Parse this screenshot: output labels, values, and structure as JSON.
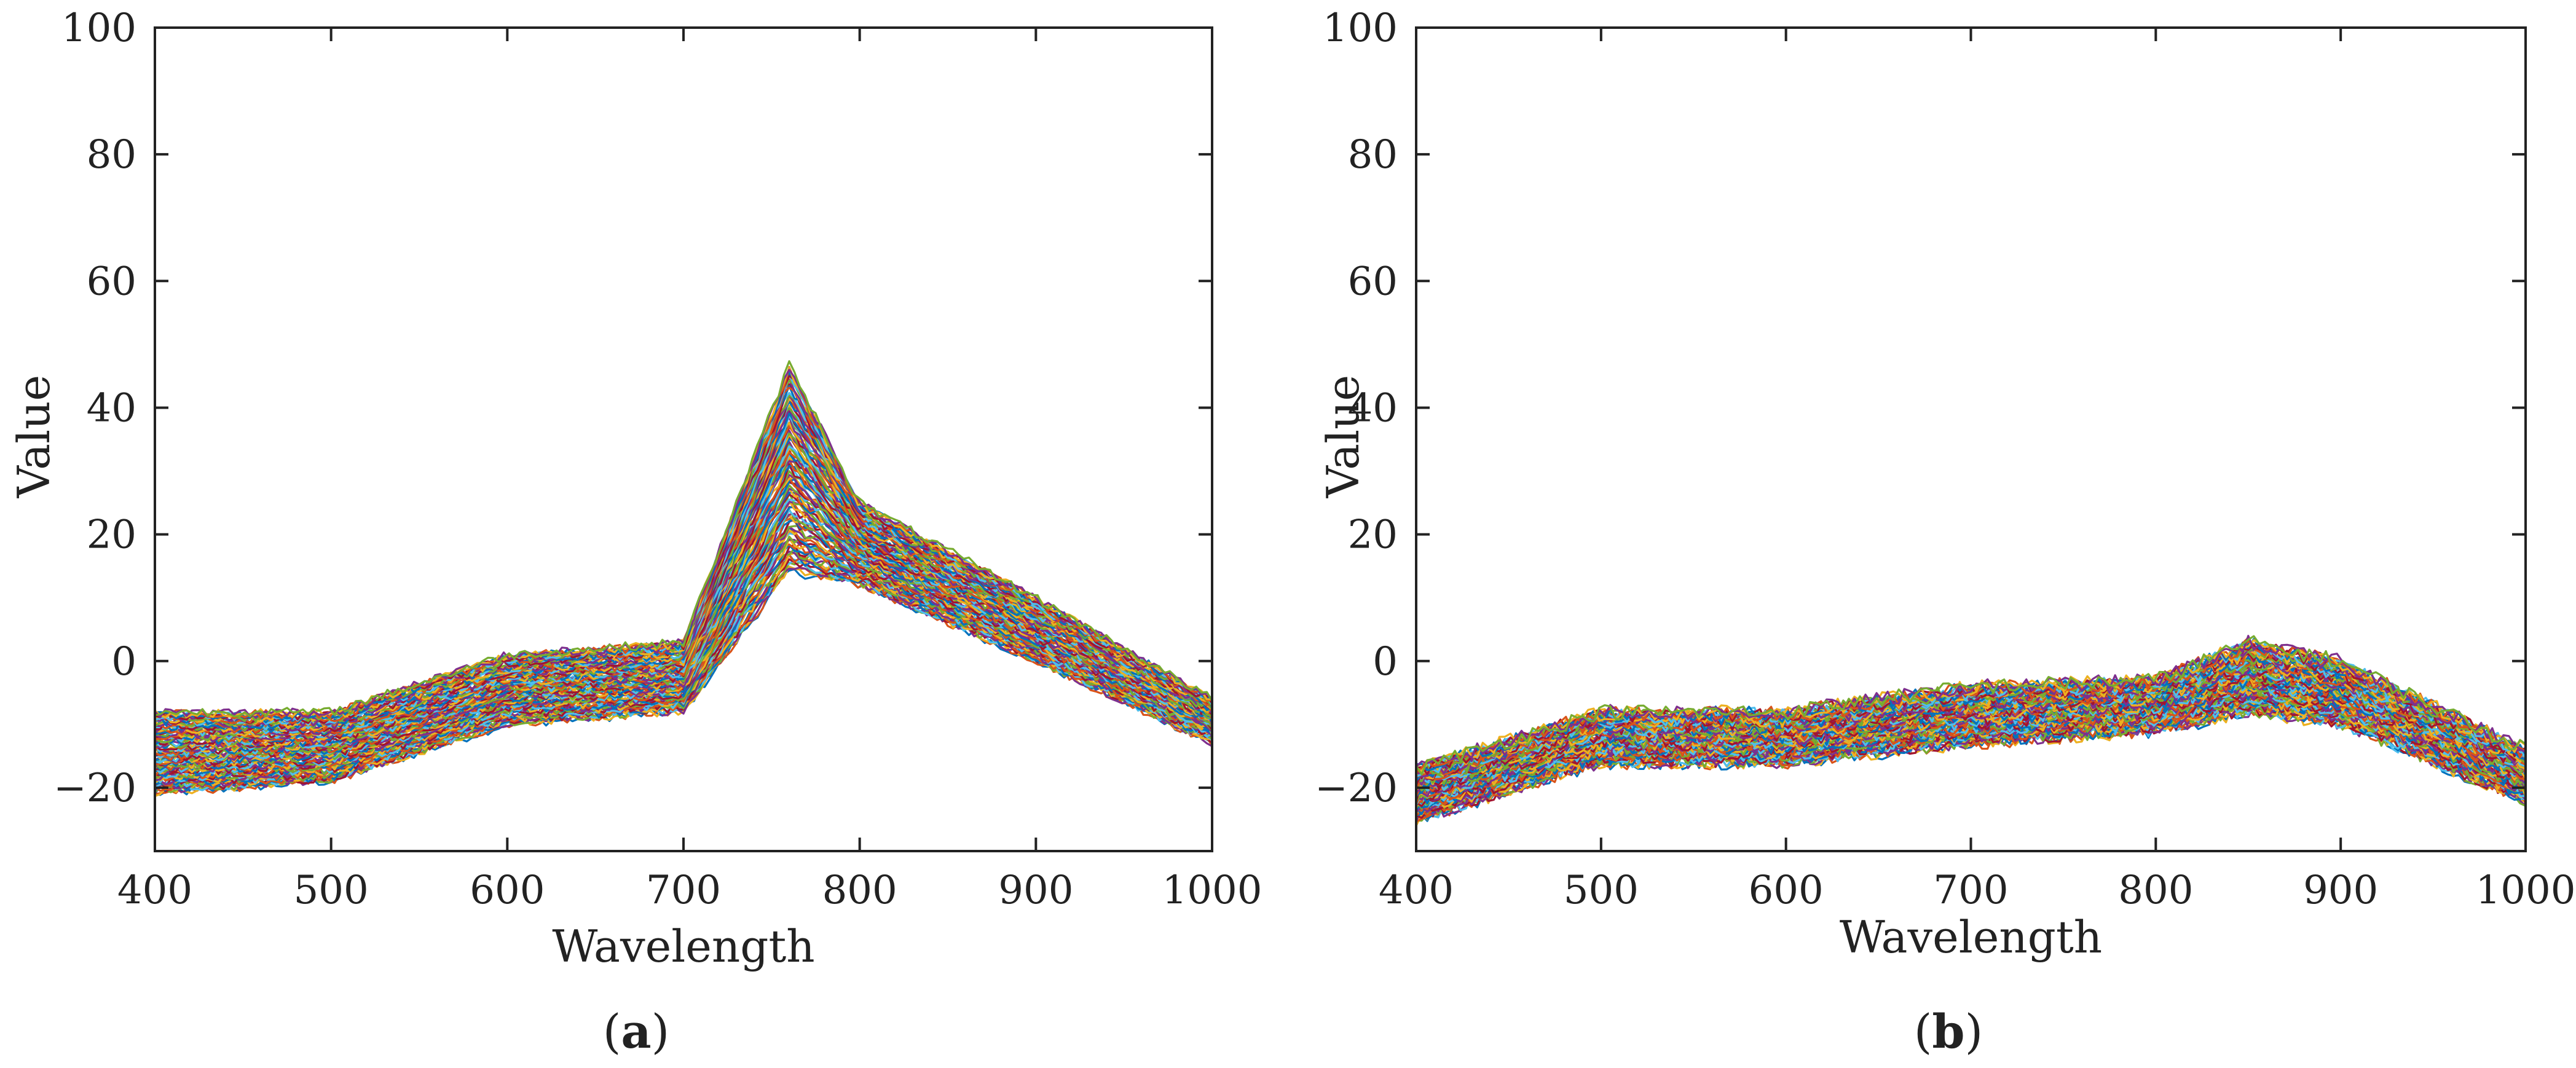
{
  "chart_data": [
    {
      "panel": "a",
      "type": "line",
      "caption": {
        "open": "(",
        "letter": "a",
        "close": ")"
      },
      "xlabel": "Wavelength",
      "ylabel": "Value",
      "xlim": [
        400,
        1000
      ],
      "ylim": [
        -30,
        100
      ],
      "xticks": [
        400,
        500,
        600,
        700,
        800,
        900,
        1000
      ],
      "yticks": [
        -20,
        0,
        20,
        40,
        60,
        80,
        100
      ],
      "xtick_labels": [
        "400",
        "500",
        "600",
        "700",
        "800",
        "900",
        "1000"
      ],
      "ytick_labels": [
        "−20",
        "0",
        "20",
        "40",
        "60",
        "80",
        "100"
      ],
      "series_count_shown": 110,
      "mean_spectrum": {
        "x": [
          400,
          420,
          440,
          460,
          480,
          500,
          520,
          540,
          560,
          580,
          600,
          620,
          640,
          660,
          680,
          690,
          700,
          710,
          720,
          730,
          740,
          750,
          755,
          760,
          763,
          766,
          770,
          775,
          780,
          785,
          790,
          795,
          800,
          810,
          820,
          840,
          860,
          880,
          900,
          920,
          940,
          960,
          980,
          1000
        ],
        "y": [
          -15,
          -14,
          -15,
          -15,
          -14,
          -13,
          -11,
          -8,
          -6,
          -5,
          -3,
          -1,
          0,
          -1,
          -2,
          -1,
          4,
          9,
          15,
          22,
          27,
          28,
          29,
          33,
          44,
          34,
          24,
          22,
          23,
          27,
          22,
          19,
          17,
          19,
          15,
          11,
          9,
          7,
          5,
          3,
          1,
          -2,
          -5,
          -10
        ]
      },
      "spread_envelope": {
        "x": [
          400,
          500,
          600,
          700,
          760,
          800,
          900,
          1000
        ],
        "y_min": [
          -21,
          -19,
          -10,
          -8,
          14,
          12,
          0,
          -13
        ],
        "y_max": [
          -8,
          -8,
          1,
          3,
          47,
          25,
          10,
          -6
        ]
      }
    },
    {
      "panel": "b",
      "type": "line",
      "caption": {
        "open": "(",
        "letter": "b",
        "close": ")"
      },
      "xlabel": "Wavelength",
      "ylabel": "Value",
      "xlim": [
        400,
        1000
      ],
      "ylim": [
        -30,
        100
      ],
      "xticks": [
        400,
        500,
        600,
        700,
        800,
        900,
        1000
      ],
      "yticks": [
        -20,
        0,
        20,
        40,
        60,
        80,
        100
      ],
      "xtick_labels": [
        "400",
        "500",
        "600",
        "700",
        "800",
        "900",
        "1000"
      ],
      "ytick_labels": [
        "−20",
        "0",
        "20",
        "40",
        "60",
        "80",
        "100"
      ],
      "series_count_shown": 110,
      "mean_spectrum": {
        "x": [
          400,
          420,
          440,
          460,
          480,
          500,
          520,
          540,
          560,
          580,
          600,
          620,
          640,
          660,
          680,
          700,
          720,
          740,
          760,
          780,
          800,
          820,
          840,
          860,
          880,
          900,
          920,
          940,
          960,
          980,
          1000
        ],
        "y": [
          -21,
          -20,
          -18,
          -16,
          -13,
          -11,
          -9,
          -9,
          -10,
          -11,
          -12,
          -12,
          -12,
          -11,
          -10,
          -8,
          -7,
          -7,
          -6,
          -7,
          -5,
          -3,
          -1,
          -2,
          -2,
          -3,
          -5,
          -9,
          -13,
          -16,
          -18
        ]
      },
      "spread_envelope": {
        "x": [
          400,
          500,
          600,
          700,
          800,
          850,
          900,
          1000
        ],
        "y_min": [
          -25,
          -16,
          -16,
          -13,
          -11,
          -8,
          -10,
          -22
        ],
        "y_max": [
          -17,
          -8,
          -8,
          -4,
          -3,
          3,
          0,
          -14
        ]
      }
    }
  ],
  "palette": [
    "#0072bd",
    "#d95319",
    "#edb120",
    "#7e2f8e",
    "#77ac30",
    "#4dbeee",
    "#a2142f"
  ]
}
